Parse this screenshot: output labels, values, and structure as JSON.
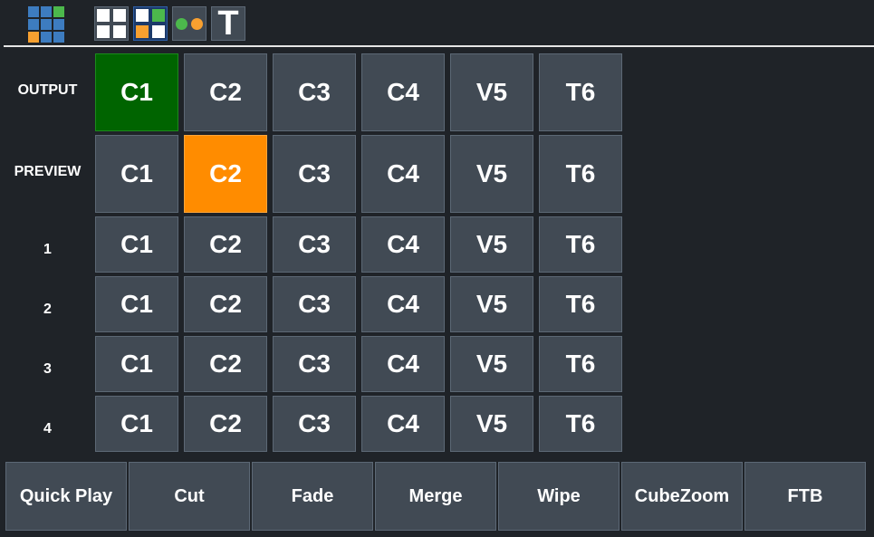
{
  "header": {
    "logo_icon": "grid-logo-icon",
    "tools": [
      {
        "name": "quad-view-icon"
      },
      {
        "name": "multiview-layout-icon",
        "active": true
      },
      {
        "name": "dual-dots-icon"
      },
      {
        "name": "title-text-icon",
        "label": "T"
      }
    ]
  },
  "colors": {
    "background": "#1f2328",
    "button": "#414a54",
    "program": "#006400",
    "preview": "#ff8c00",
    "blue": "#3d7cc0",
    "green": "#4cb84c",
    "orange": "#f8a030"
  },
  "rows": [
    {
      "label": "OUTPUT",
      "selected": 0,
      "type": "out"
    },
    {
      "label": "PREVIEW",
      "selected": 1,
      "type": "pre"
    },
    {
      "label": "1"
    },
    {
      "label": "2"
    },
    {
      "label": "3"
    },
    {
      "label": "4"
    }
  ],
  "sources": [
    "C1",
    "C2",
    "C3",
    "C4",
    "V5",
    "T6"
  ],
  "transitions": [
    "Quick Play",
    "Cut",
    "Fade",
    "Merge",
    "Wipe",
    "CubeZoom",
    "FTB"
  ]
}
